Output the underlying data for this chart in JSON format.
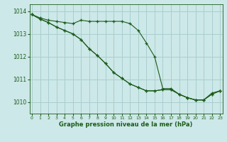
{
  "xlabel": "Graphe pression niveau de la mer (hPa)",
  "ylim": [
    1009.5,
    1014.3
  ],
  "xlim": [
    -0.3,
    23.3
  ],
  "bg_color": "#cde8e8",
  "line_color": "#1a5c1a",
  "grid_color": "#a8cece",
  "xticks": [
    0,
    1,
    2,
    3,
    4,
    5,
    6,
    7,
    8,
    9,
    10,
    11,
    12,
    13,
    14,
    15,
    16,
    17,
    18,
    19,
    20,
    21,
    22,
    23
  ],
  "yticks": [
    1010,
    1011,
    1012,
    1013,
    1014
  ],
  "series1": [
    1013.85,
    1013.7,
    1013.6,
    1013.55,
    1013.5,
    1013.45,
    1013.6,
    1013.55,
    1013.55,
    1013.55,
    1013.55,
    1013.55,
    1013.45,
    1013.15,
    1012.6,
    1012.0,
    1010.6,
    1010.6,
    1010.35,
    1010.2,
    1010.1,
    1010.1,
    1010.4,
    1010.5
  ],
  "series2": [
    1013.85,
    1013.65,
    1013.5,
    1013.3,
    1013.15,
    1013.0,
    1012.75,
    1012.35,
    1012.05,
    1011.7,
    1011.3,
    1011.05,
    1010.8,
    1010.65,
    1010.5,
    1010.5,
    1010.55,
    1010.55,
    1010.35,
    1010.2,
    1010.1,
    1010.1,
    1010.35,
    1010.5
  ],
  "series3": [
    1013.85,
    1013.65,
    1013.5,
    1013.3,
    1013.15,
    1013.0,
    1012.75,
    1012.35,
    1012.05,
    1011.7,
    1011.3,
    1011.05,
    1010.8,
    1010.65,
    1010.5,
    1010.5,
    1010.55,
    1010.55,
    1010.35,
    1010.2,
    1010.1,
    1010.1,
    1010.35,
    1010.5
  ]
}
